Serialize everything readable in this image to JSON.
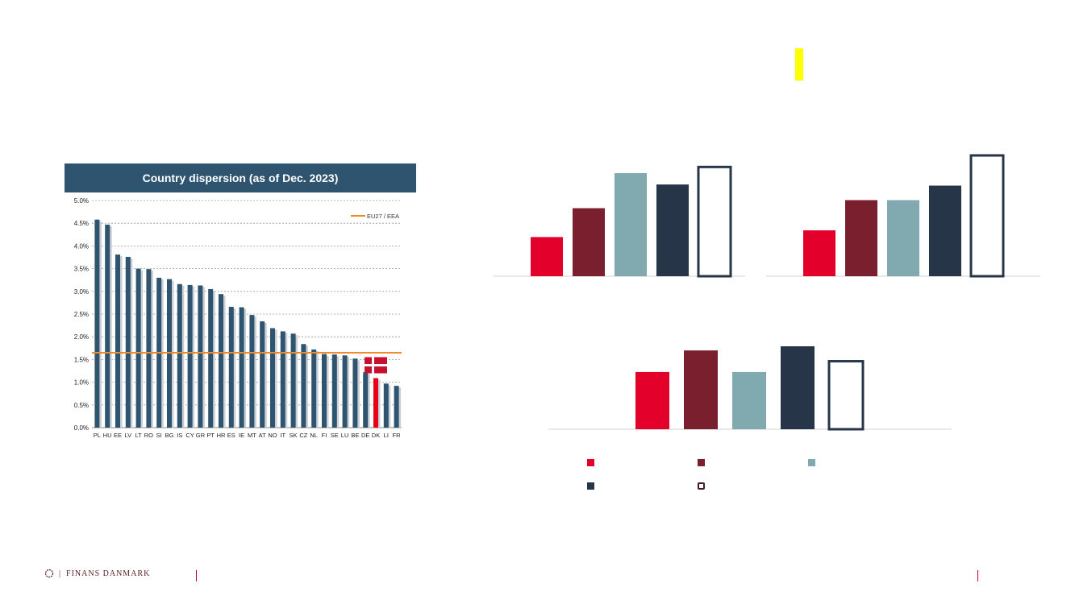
{
  "chart_data": [
    {
      "type": "bar",
      "title": "Country dispersion (as of Dec. 2023)",
      "categories": [
        "PL",
        "HU",
        "EE",
        "LV",
        "LT",
        "RO",
        "SI",
        "BG",
        "IS",
        "CY",
        "GR",
        "PT",
        "HR",
        "ES",
        "IE",
        "MT",
        "AT",
        "NO",
        "IT",
        "SK",
        "CZ",
        "NL",
        "FI",
        "SE",
        "LU",
        "BE",
        "DE",
        "DK",
        "LI",
        "FR"
      ],
      "series": [
        {
          "values": [
            4.58,
            4.47,
            3.81,
            3.76,
            3.5,
            3.49,
            3.3,
            3.27,
            3.16,
            3.14,
            3.13,
            3.05,
            2.94,
            2.66,
            2.65,
            2.48,
            2.34,
            2.19,
            2.12,
            2.07,
            1.84,
            1.72,
            1.62,
            1.61,
            1.59,
            1.52,
            1.22,
            1.09,
            0.97,
            0.92
          ]
        }
      ],
      "highlight_category": "DK",
      "highlight_color": "#e8001a",
      "bar_color": "#2f5470",
      "reference_line": {
        "name": "EU27 / EEA",
        "value": 1.65,
        "color": "#ed8b2b"
      },
      "yticks": [
        "0.0%",
        "0.5%",
        "1.0%",
        "1.5%",
        "2.0%",
        "2.5%",
        "3.0%",
        "3.5%",
        "4.0%",
        "4.5%",
        "5.0%"
      ],
      "ylim": [
        0,
        5.0
      ],
      "grid": true,
      "legend_placement": "top-right",
      "flag": "denmark-flag-icon"
    },
    {
      "type": "bar",
      "note": "unlabeled panel, values relative",
      "values": [
        0.38,
        0.66,
        1.0,
        0.89,
        1.06
      ],
      "outline_last": true
    },
    {
      "type": "bar",
      "note": "unlabeled panel, values relative",
      "values": [
        0.38,
        0.63,
        0.63,
        0.75,
        1.0
      ],
      "outline_last": true
    },
    {
      "type": "bar",
      "note": "unlabeled panel, values relative",
      "values": [
        0.69,
        0.95,
        0.69,
        1.0,
        0.82
      ],
      "outline_last": true
    }
  ],
  "panel_colors": [
    "#e3002b",
    "#7a1f2e",
    "#80a9b0",
    "#263648",
    "#ffffff"
  ],
  "legend": {
    "colors": [
      "#e3002b",
      "#7a1f2e",
      "#80a9b0",
      "#263648",
      "#ffffff"
    ],
    "labels": [
      "",
      "",
      "",
      "",
      ""
    ]
  },
  "footer": {
    "logo_text": "FINANS DANMARK"
  }
}
